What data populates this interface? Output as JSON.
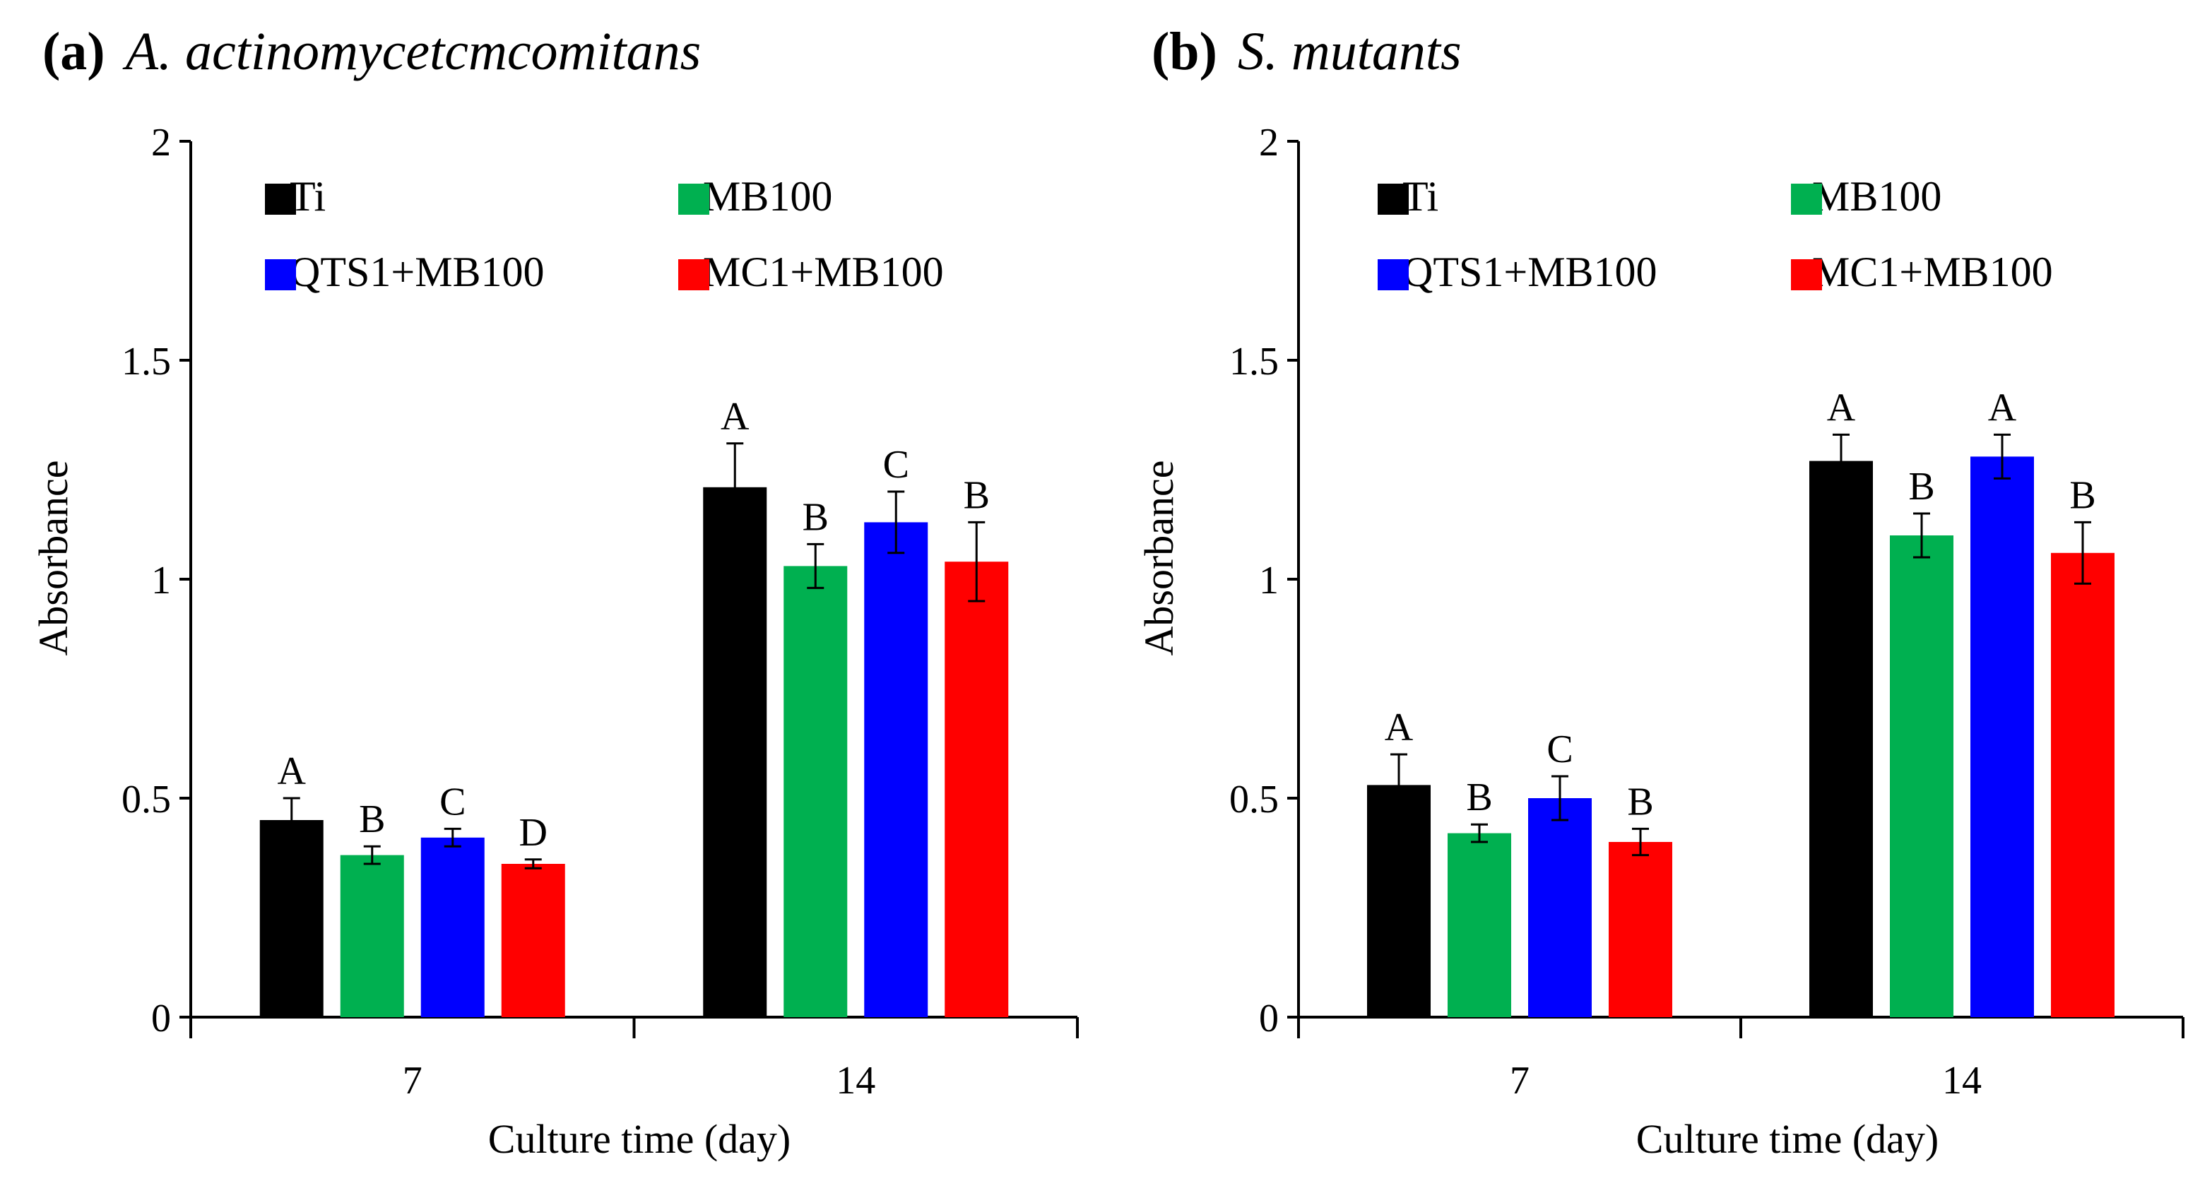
{
  "chart_data": [
    {
      "type": "bar",
      "panel_tag": "(a)",
      "title": "A. actinomycetcmcomitans",
      "xlabel": "Culture time (day)",
      "ylabel": "Absorbance",
      "ylim": [
        0,
        2
      ],
      "yticks": [
        "0",
        "0.5",
        "1",
        "1.5",
        "2"
      ],
      "categories": [
        "7",
        "14"
      ],
      "legend_placement": "top-left, inside plot, two columns",
      "series": [
        {
          "name": "Ti",
          "color": "#000000",
          "values": [
            0.45,
            1.21
          ],
          "errors": [
            0.05,
            0.1
          ],
          "labels": [
            "A",
            "A"
          ]
        },
        {
          "name": "MB100",
          "color": "#00b050",
          "values": [
            0.37,
            1.03
          ],
          "errors": [
            0.02,
            0.05
          ],
          "labels": [
            "B",
            "B"
          ]
        },
        {
          "name": "QTS1+MB100",
          "color": "#0000ff",
          "values": [
            0.41,
            1.13
          ],
          "errors": [
            0.02,
            0.07
          ],
          "labels": [
            "C",
            "C"
          ]
        },
        {
          "name": "MC1+MB100",
          "color": "#ff0000",
          "values": [
            0.35,
            1.04
          ],
          "errors": [
            0.01,
            0.09
          ],
          "labels": [
            "D",
            "B"
          ]
        }
      ]
    },
    {
      "type": "bar",
      "panel_tag": "(b)",
      "title": "S. mutants",
      "xlabel": "Culture time (day)",
      "ylabel": "Absorbance",
      "ylim": [
        0,
        2
      ],
      "yticks": [
        "0",
        "0.5",
        "1",
        "1.5",
        "2"
      ],
      "categories": [
        "7",
        "14"
      ],
      "legend_placement": "top-left, inside plot, two columns",
      "series": [
        {
          "name": "Ti",
          "color": "#000000",
          "values": [
            0.53,
            1.27
          ],
          "errors": [
            0.07,
            0.06
          ],
          "labels": [
            "A",
            "A"
          ]
        },
        {
          "name": "MB100",
          "color": "#00b050",
          "values": [
            0.42,
            1.1
          ],
          "errors": [
            0.02,
            0.05
          ],
          "labels": [
            "B",
            "B"
          ]
        },
        {
          "name": "QTS1+MB100",
          "color": "#0000ff",
          "values": [
            0.5,
            1.28
          ],
          "errors": [
            0.05,
            0.05
          ],
          "labels": [
            "C",
            "A"
          ]
        },
        {
          "name": "MC1+MB100",
          "color": "#ff0000",
          "values": [
            0.4,
            1.06
          ],
          "errors": [
            0.03,
            0.07
          ],
          "labels": [
            "B",
            "B"
          ]
        }
      ]
    }
  ]
}
